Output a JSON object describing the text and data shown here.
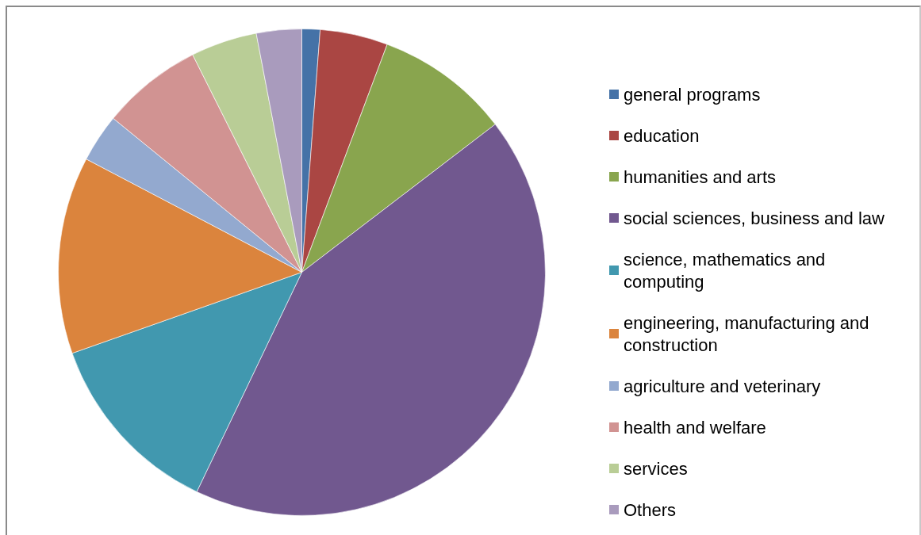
{
  "chart_data": {
    "type": "pie",
    "categories": [
      "general programs",
      "education",
      "humanities and arts",
      "social sciences, business and law",
      "science, mathematics and computing",
      "engineering, manufacturing and construction",
      "agriculture and veterinary",
      "health and welfare",
      "services",
      "Others"
    ],
    "values": [
      1.2,
      4.5,
      8.9,
      42.5,
      12.5,
      13.1,
      3.2,
      6.7,
      4.4,
      3.0
    ],
    "colors": [
      "#4572a7",
      "#aa4643",
      "#89a54e",
      "#71588f",
      "#4198af",
      "#db843d",
      "#93a9cf",
      "#d19392",
      "#b9cd96",
      "#a99bbd"
    ],
    "legend": "right"
  }
}
